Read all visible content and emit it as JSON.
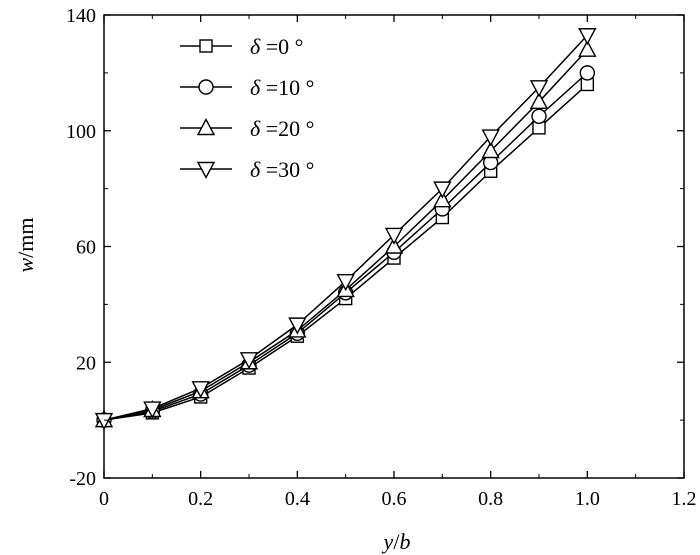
{
  "chart_data": {
    "type": "line",
    "title": "",
    "xlabel": {
      "var": "y",
      "sep": "/",
      "var2": "b"
    },
    "ylabel": {
      "var": "w",
      "unit": "/mm"
    },
    "xlim": [
      0,
      1.2
    ],
    "ylim": [
      -20,
      140
    ],
    "xticks": [
      0,
      0.2,
      0.4,
      0.6,
      0.8,
      1.0,
      1.2
    ],
    "xtick_labels": [
      "0",
      "0.2",
      "0.4",
      "0.6",
      "0.8",
      "1.0",
      "1.2"
    ],
    "yticks": [
      -20,
      20,
      60,
      100,
      140
    ],
    "ytick_labels": [
      "-20",
      "20",
      "60",
      "100",
      "140"
    ],
    "grid": false,
    "legend_position": "top-left",
    "x": [
      0,
      0.1,
      0.2,
      0.3,
      0.4,
      0.5,
      0.6,
      0.7,
      0.8,
      0.9,
      1.0
    ],
    "series": [
      {
        "name": "δ =0°",
        "symbol": "δ",
        "value_label": "=0 °",
        "marker": "square",
        "values": [
          0,
          2.5,
          8,
          18,
          29,
          42,
          56,
          70,
          86,
          101,
          116
        ]
      },
      {
        "name": "δ =10°",
        "symbol": "δ",
        "value_label": "=10 °",
        "marker": "circle",
        "values": [
          0,
          3,
          9,
          19,
          30,
          44,
          58,
          73,
          89,
          105,
          120
        ]
      },
      {
        "name": "δ =20°",
        "symbol": "δ",
        "value_label": "=20 °",
        "marker": "triangle-up",
        "values": [
          0,
          3.5,
          10,
          20,
          31,
          45,
          60,
          76,
          93,
          110,
          128
        ]
      },
      {
        "name": "δ =30°",
        "symbol": "δ",
        "value_label": "=30 °",
        "marker": "triangle-down",
        "values": [
          0,
          4,
          11,
          21,
          33,
          48,
          64,
          80,
          98,
          115,
          133
        ]
      }
    ]
  }
}
